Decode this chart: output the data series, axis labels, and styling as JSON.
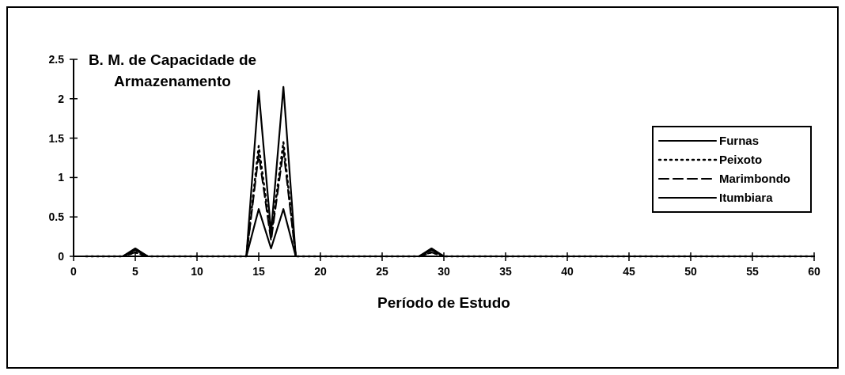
{
  "chart_data": {
    "type": "line",
    "title": "B. M. de Capacidade de Armazenamento",
    "xlabel": "Período de Estudo",
    "xlim": [
      0,
      60
    ],
    "xticks": [
      0,
      5,
      10,
      15,
      20,
      25,
      30,
      35,
      40,
      45,
      50,
      55,
      60
    ],
    "ylim": [
      0,
      2.5
    ],
    "yticks": [
      0,
      0.5,
      1,
      1.5,
      2,
      2.5
    ],
    "grid": false,
    "legend": "right",
    "series": [
      {
        "name": "Furnas",
        "color": "#000000",
        "line_style": "solid",
        "x": [
          1,
          4,
          5,
          6,
          14,
          15,
          16,
          17,
          18,
          28,
          29,
          30,
          60
        ],
        "values": [
          0,
          0,
          0.1,
          0,
          0,
          2.1,
          0.3,
          2.15,
          0,
          0,
          0.1,
          0,
          0
        ]
      },
      {
        "name": "Peixoto",
        "color": "#000000",
        "line_style": "dotted",
        "x": [
          1,
          4,
          5,
          6,
          14,
          15,
          16,
          17,
          18,
          28,
          29,
          30,
          60
        ],
        "values": [
          0,
          0,
          0.05,
          0,
          0,
          1.4,
          0.25,
          1.45,
          0,
          0,
          0.05,
          0,
          0
        ]
      },
      {
        "name": "Marimbondo",
        "color": "#000000",
        "line_style": "dashed",
        "x": [
          1,
          4,
          5,
          6,
          14,
          15,
          16,
          17,
          18,
          28,
          29,
          30,
          60
        ],
        "values": [
          0,
          0,
          0.05,
          0,
          0,
          1.3,
          0.2,
          1.35,
          0,
          0,
          0.05,
          0,
          0
        ]
      },
      {
        "name": "Itumbiara",
        "color": "#000000",
        "line_style": "solid",
        "x": [
          1,
          4,
          5,
          6,
          14,
          15,
          16,
          17,
          18,
          28,
          29,
          30,
          60
        ],
        "values": [
          0,
          0,
          0.08,
          0,
          0,
          0.6,
          0.1,
          0.6,
          0,
          0,
          0.08,
          0,
          0
        ]
      }
    ]
  }
}
